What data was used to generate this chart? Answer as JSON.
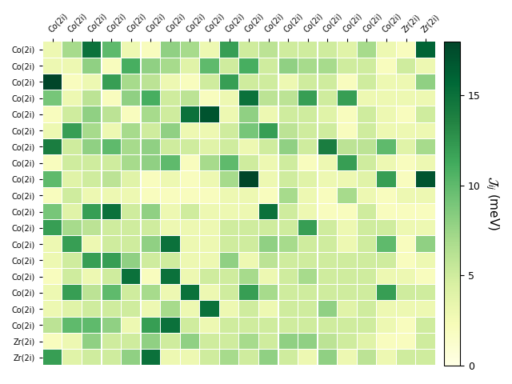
{
  "rows": 20,
  "cols": 20,
  "row_labels": [
    "Co(2i)",
    "Co(2i)",
    "Co(2i)",
    "Co(2i)",
    "Co(2i)",
    "Co(2i)",
    "Co(2i)",
    "Co(2i)",
    "Co(2i)",
    "Co(2i)",
    "Co(2i)",
    "Co(2i)",
    "Co(2i)",
    "Co(2i)",
    "Co(2i)",
    "Co(2i)",
    "Co(2i)",
    "Co(2i)",
    "Zr(2i)",
    "Zr(2i)"
  ],
  "col_labels": [
    "Co(2i)",
    "Co(2i)",
    "Co(2i)",
    "Co(2i)",
    "Co(2i)",
    "Co(2i)",
    "Co(2i)",
    "Co(2i)",
    "Co(2i)",
    "Co(2i)",
    "Co(2i)",
    "Co(2i)",
    "Co(2i)",
    "Co(2i)",
    "Co(2i)",
    "Co(2i)",
    "Co(2i)",
    "Co(2i)",
    "Zr(2i)",
    "Zr(2i)"
  ],
  "vmin": 0,
  "vmax": 18,
  "cbar_ticks": [
    0,
    5,
    10,
    15
  ],
  "cbar_label": "$\\mathcal{J}_{ij}$ (meV)",
  "colormap": "YlGn",
  "data": [
    [
      3,
      7,
      15,
      10,
      3,
      2,
      8,
      7,
      3,
      12,
      5,
      6,
      5,
      5,
      5,
      4,
      7,
      3,
      2,
      16
    ],
    [
      3,
      3,
      8,
      2,
      11,
      8,
      7,
      4,
      10,
      5,
      11,
      5,
      8,
      7,
      7,
      5,
      5,
      2,
      5,
      3
    ],
    [
      18,
      2,
      3,
      12,
      7,
      6,
      3,
      2,
      5,
      12,
      5,
      5,
      3,
      5,
      5,
      2,
      5,
      3,
      3,
      8
    ],
    [
      9,
      3,
      6,
      2,
      8,
      11,
      5,
      6,
      2,
      3,
      15,
      6,
      6,
      12,
      5,
      12,
      3,
      3,
      3,
      3
    ],
    [
      2,
      5,
      8,
      6,
      2,
      7,
      5,
      15,
      17,
      3,
      8,
      3,
      5,
      5,
      4,
      2,
      5,
      3,
      2,
      5
    ],
    [
      3,
      12,
      7,
      3,
      7,
      5,
      8,
      3,
      3,
      5,
      9,
      12,
      6,
      5,
      5,
      2,
      5,
      3,
      3,
      3
    ],
    [
      14,
      5,
      8,
      10,
      7,
      8,
      5,
      5,
      4,
      5,
      3,
      5,
      8,
      5,
      14,
      6,
      6,
      10,
      4,
      7
    ],
    [
      2,
      5,
      5,
      5,
      7,
      8,
      10,
      2,
      7,
      10,
      5,
      3,
      5,
      2,
      3,
      12,
      5,
      3,
      2,
      3
    ],
    [
      10,
      4,
      5,
      6,
      4,
      2,
      3,
      2,
      3,
      7,
      18,
      3,
      5,
      4,
      3,
      3,
      4,
      12,
      2,
      17
    ],
    [
      2,
      5,
      3,
      3,
      3,
      2,
      2,
      2,
      2,
      3,
      3,
      2,
      7,
      3,
      2,
      7,
      3,
      2,
      3,
      3
    ],
    [
      9,
      4,
      12,
      15,
      5,
      8,
      3,
      5,
      3,
      3,
      3,
      15,
      5,
      3,
      2,
      2,
      5,
      2,
      2,
      2
    ],
    [
      12,
      7,
      6,
      5,
      5,
      5,
      3,
      3,
      3,
      5,
      5,
      5,
      5,
      12,
      5,
      3,
      5,
      5,
      3,
      3
    ],
    [
      3,
      12,
      3,
      5,
      5,
      8,
      15,
      3,
      3,
      5,
      5,
      8,
      7,
      5,
      5,
      3,
      5,
      10,
      2,
      8
    ],
    [
      3,
      5,
      12,
      12,
      8,
      5,
      5,
      3,
      3,
      8,
      3,
      6,
      5,
      5,
      5,
      5,
      5,
      5,
      2,
      3
    ],
    [
      2,
      5,
      3,
      5,
      15,
      2,
      15,
      3,
      5,
      5,
      7,
      3,
      5,
      7,
      5,
      5,
      5,
      3,
      3,
      2
    ],
    [
      3,
      12,
      6,
      10,
      5,
      7,
      3,
      15,
      3,
      5,
      12,
      7,
      5,
      5,
      5,
      5,
      5,
      12,
      5,
      5
    ],
    [
      3,
      4,
      5,
      5,
      5,
      3,
      7,
      3,
      15,
      3,
      5,
      3,
      5,
      5,
      8,
      4,
      5,
      3,
      3,
      3
    ],
    [
      6,
      10,
      10,
      8,
      3,
      12,
      15,
      5,
      3,
      5,
      5,
      5,
      5,
      5,
      5,
      5,
      5,
      3,
      2,
      5
    ],
    [
      2,
      3,
      8,
      5,
      5,
      8,
      5,
      8,
      5,
      5,
      7,
      5,
      8,
      8,
      6,
      5,
      4,
      2,
      2,
      5
    ],
    [
      12,
      4,
      5,
      5,
      8,
      15,
      3,
      3,
      5,
      7,
      5,
      8,
      5,
      3,
      8,
      3,
      6,
      3,
      5,
      5
    ]
  ]
}
